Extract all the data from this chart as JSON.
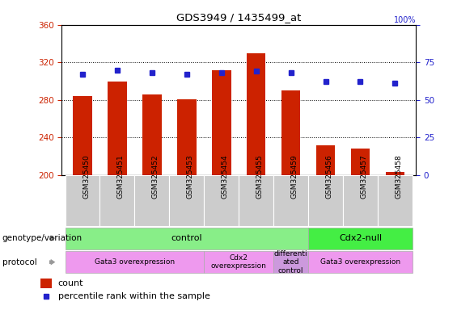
{
  "title": "GDS3949 / 1435499_at",
  "samples": [
    "GSM325450",
    "GSM325451",
    "GSM325452",
    "GSM325453",
    "GSM325454",
    "GSM325455",
    "GSM325459",
    "GSM325456",
    "GSM325457",
    "GSM325458"
  ],
  "counts": [
    284,
    300,
    286,
    281,
    312,
    330,
    290,
    232,
    228,
    203
  ],
  "percentile_ranks": [
    67,
    70,
    68,
    67,
    68,
    69,
    68,
    62,
    62,
    61
  ],
  "ylim_left": [
    200,
    360
  ],
  "ylim_right": [
    0,
    100
  ],
  "yticks_left": [
    200,
    240,
    280,
    320,
    360
  ],
  "yticks_right": [
    0,
    25,
    50,
    75,
    100
  ],
  "bar_color": "#cc2200",
  "dot_color": "#2222cc",
  "sample_bg_color": "#cccccc",
  "genotype_groups": [
    {
      "label": "control",
      "start": 0,
      "end": 6,
      "color": "#88ee88"
    },
    {
      "label": "Cdx2-null",
      "start": 7,
      "end": 9,
      "color": "#44ee44"
    }
  ],
  "protocol_groups": [
    {
      "label": "Gata3 overexpression",
      "start": 0,
      "end": 3,
      "color": "#ee99ee"
    },
    {
      "label": "Cdx2\noverexpression",
      "start": 4,
      "end": 5,
      "color": "#ee99ee"
    },
    {
      "label": "differenti\nated\ncontrol",
      "start": 6,
      "end": 6,
      "color": "#cc99dd"
    },
    {
      "label": "Gata3 overexpression",
      "start": 7,
      "end": 9,
      "color": "#ee99ee"
    }
  ],
  "legend_count_color": "#cc2200",
  "legend_dot_color": "#2222cc",
  "row_label_genotype": "genotype/variation",
  "row_label_protocol": "protocol",
  "arrow_color": "#999999"
}
